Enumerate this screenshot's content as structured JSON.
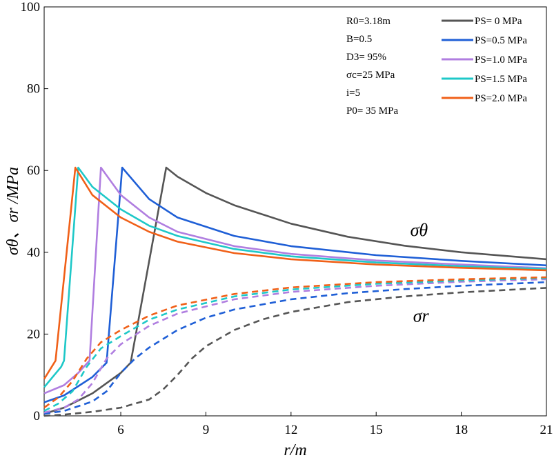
{
  "chart_data": {
    "type": "line",
    "xlabel": "r/m",
    "ylabel": "σθ、σr /MPa",
    "xlim": [
      3.3,
      21
    ],
    "ylim": [
      0,
      100
    ],
    "xticks": [
      6,
      9,
      12,
      15,
      18,
      21
    ],
    "yticks": [
      0,
      20,
      40,
      60,
      80,
      100
    ],
    "parameters": [
      "R0=3.18m",
      "B=0.5",
      "D3= 95%",
      "σc=25 MPa",
      "i=5",
      "P0= 35 MPa"
    ],
    "annotations": [
      {
        "text": "σθ",
        "x": 16.2,
        "y": 44
      },
      {
        "text": "σr",
        "x": 16.3,
        "y": 23
      }
    ],
    "series": [
      {
        "name": "PS= 0  MPa",
        "color": "#555555",
        "sigma_theta": [
          [
            3.3,
            0.5
          ],
          [
            4.0,
            2.0
          ],
          [
            5.0,
            5.5
          ],
          [
            6.0,
            10.5
          ],
          [
            6.35,
            13.0
          ],
          [
            7.6,
            60.7
          ],
          [
            8.0,
            58.5
          ],
          [
            9.0,
            54.5
          ],
          [
            10.0,
            51.5
          ],
          [
            12.0,
            47.0
          ],
          [
            14.0,
            43.8
          ],
          [
            16.0,
            41.6
          ],
          [
            18.0,
            40.0
          ],
          [
            21.0,
            38.3
          ]
        ],
        "sigma_r": [
          [
            3.3,
            0
          ],
          [
            4.0,
            0.3
          ],
          [
            5.0,
            1.0
          ],
          [
            6.0,
            2.0
          ],
          [
            7.0,
            4.0
          ],
          [
            7.5,
            6.5
          ],
          [
            8.0,
            10.0
          ],
          [
            8.5,
            14.0
          ],
          [
            9.0,
            17.0
          ],
          [
            10.0,
            21.0
          ],
          [
            11.0,
            23.6
          ],
          [
            12.0,
            25.4
          ],
          [
            14.0,
            27.8
          ],
          [
            16.0,
            29.2
          ],
          [
            18.0,
            30.2
          ],
          [
            21.0,
            31.3
          ]
        ]
      },
      {
        "name": "PS=0.5 MPa",
        "color": "#1f5fd6",
        "sigma_theta": [
          [
            3.3,
            3.3
          ],
          [
            4.0,
            5.0
          ],
          [
            5.0,
            9.5
          ],
          [
            5.5,
            13.0
          ],
          [
            6.05,
            60.7
          ],
          [
            7.0,
            53.0
          ],
          [
            8.0,
            48.5
          ],
          [
            10.0,
            44.0
          ],
          [
            12.0,
            41.5
          ],
          [
            15.0,
            39.3
          ],
          [
            18.0,
            37.9
          ],
          [
            21.0,
            36.8
          ]
        ],
        "sigma_r": [
          [
            3.3,
            0.5
          ],
          [
            4.0,
            1.2
          ],
          [
            5.0,
            3.5
          ],
          [
            5.5,
            6.0
          ],
          [
            6.0,
            10.5
          ],
          [
            6.5,
            14.0
          ],
          [
            7.0,
            16.7
          ],
          [
            8.0,
            21.0
          ],
          [
            9.0,
            24.0
          ],
          [
            10.0,
            26.0
          ],
          [
            12.0,
            28.5
          ],
          [
            14.0,
            30.0
          ],
          [
            16.0,
            31.0
          ],
          [
            18.0,
            31.8
          ],
          [
            21.0,
            32.7
          ]
        ]
      },
      {
        "name": "PS=1.0 MPa",
        "color": "#b07ee0",
        "sigma_theta": [
          [
            3.3,
            5.5
          ],
          [
            4.0,
            7.5
          ],
          [
            4.5,
            10.5
          ],
          [
            4.9,
            13.5
          ],
          [
            5.3,
            60.7
          ],
          [
            6.0,
            54.0
          ],
          [
            7.0,
            48.5
          ],
          [
            8.0,
            45.0
          ],
          [
            10.0,
            41.5
          ],
          [
            12.0,
            39.6
          ],
          [
            15.0,
            38.0
          ],
          [
            18.0,
            37.0
          ],
          [
            21.0,
            36.1
          ]
        ],
        "sigma_r": [
          [
            3.3,
            0.8
          ],
          [
            4.0,
            2.0
          ],
          [
            4.5,
            4.0
          ],
          [
            5.0,
            8.0
          ],
          [
            5.5,
            14.0
          ],
          [
            6.0,
            17.5
          ],
          [
            7.0,
            22.0
          ],
          [
            8.0,
            25.0
          ],
          [
            10.0,
            28.5
          ],
          [
            12.0,
            30.3
          ],
          [
            15.0,
            31.8
          ],
          [
            18.0,
            32.8
          ],
          [
            21.0,
            33.4
          ]
        ]
      },
      {
        "name": "PS=1.5 MPa",
        "color": "#1ec8c8",
        "sigma_theta": [
          [
            3.3,
            7.0
          ],
          [
            3.9,
            12.0
          ],
          [
            4.0,
            13.5
          ],
          [
            4.5,
            60.7
          ],
          [
            5.0,
            56.0
          ],
          [
            6.0,
            50.5
          ],
          [
            7.0,
            46.5
          ],
          [
            8.0,
            44.0
          ],
          [
            10.0,
            40.8
          ],
          [
            12.0,
            39.0
          ],
          [
            15.0,
            37.5
          ],
          [
            18.0,
            36.6
          ],
          [
            21.0,
            35.9
          ]
        ],
        "sigma_r": [
          [
            3.3,
            1.2
          ],
          [
            3.8,
            3.0
          ],
          [
            4.3,
            6.0
          ],
          [
            4.8,
            12.0
          ],
          [
            5.3,
            16.5
          ],
          [
            6.0,
            19.5
          ],
          [
            7.0,
            23.5
          ],
          [
            8.0,
            26.0
          ],
          [
            10.0,
            29.2
          ],
          [
            12.0,
            30.9
          ],
          [
            15.0,
            32.3
          ],
          [
            18.0,
            33.1
          ],
          [
            21.0,
            33.7
          ]
        ]
      },
      {
        "name": "PS=2.0 MPa",
        "color": "#f06018",
        "sigma_theta": [
          [
            3.3,
            9.0
          ],
          [
            3.7,
            13.5
          ],
          [
            4.4,
            60.7
          ],
          [
            5.0,
            54.0
          ],
          [
            6.0,
            48.5
          ],
          [
            7.0,
            45.0
          ],
          [
            8.0,
            42.6
          ],
          [
            10.0,
            39.8
          ],
          [
            12.0,
            38.3
          ],
          [
            15.0,
            37.0
          ],
          [
            18.0,
            36.2
          ],
          [
            21.0,
            35.6
          ]
        ],
        "sigma_r": [
          [
            3.3,
            2.0
          ],
          [
            3.8,
            4.5
          ],
          [
            4.3,
            8.5
          ],
          [
            4.8,
            14.0
          ],
          [
            5.3,
            18.0
          ],
          [
            6.0,
            21.0
          ],
          [
            7.0,
            24.5
          ],
          [
            8.0,
            27.0
          ],
          [
            10.0,
            29.8
          ],
          [
            12.0,
            31.4
          ],
          [
            15.0,
            32.7
          ],
          [
            18.0,
            33.4
          ],
          [
            21.0,
            33.9
          ]
        ]
      }
    ]
  }
}
